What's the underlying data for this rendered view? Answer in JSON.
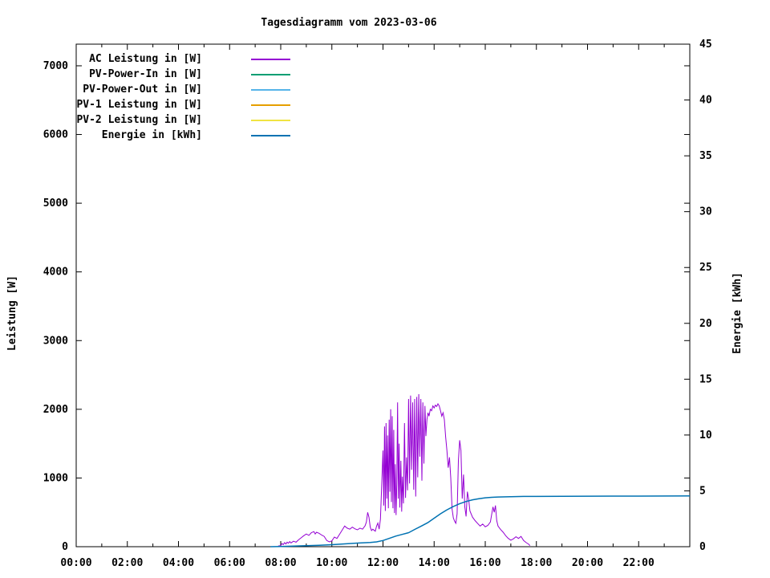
{
  "chart_data": {
    "type": "line",
    "title": "Tagesdiagramm vom 2023-03-06",
    "ylabel": "Leistung [W]",
    "y2label": "Energie [kWh]",
    "grid": false,
    "legend_position": "top-left-inside",
    "x_axis": {
      "unit": "time",
      "range_hours": [
        0,
        24
      ],
      "major_tick_labels": [
        "00:00",
        "02:00",
        "04:00",
        "06:00",
        "08:00",
        "10:00",
        "12:00",
        "14:00",
        "16:00",
        "18:00",
        "20:00",
        "22:00"
      ],
      "minor_tick_every_hours": 1
    },
    "y_axis": {
      "label": "Leistung [W]",
      "tick_min": 0,
      "tick_max": 7000,
      "tick_step": 1000,
      "tick_labels": [
        "0",
        "1000",
        "2000",
        "3000",
        "4000",
        "5000",
        "6000",
        "7000"
      ]
    },
    "y2_axis": {
      "label": "Energie [kWh]",
      "tick_min": 0,
      "tick_max": 45,
      "tick_step": 5,
      "tick_labels": [
        "0",
        "5",
        "10",
        "15",
        "20",
        "25",
        "30",
        "35",
        "40",
        "45"
      ]
    },
    "series": [
      {
        "name": "AC Leistung in [W]",
        "color": "#9400D3",
        "axis": "y1",
        "points": [
          [
            7.9,
            10
          ],
          [
            8.0,
            15
          ],
          [
            8.05,
            45
          ],
          [
            8.1,
            30
          ],
          [
            8.15,
            60
          ],
          [
            8.2,
            40
          ],
          [
            8.25,
            65
          ],
          [
            8.3,
            50
          ],
          [
            8.35,
            75
          ],
          [
            8.4,
            55
          ],
          [
            8.5,
            80
          ],
          [
            8.6,
            65
          ],
          [
            8.7,
            100
          ],
          [
            8.8,
            130
          ],
          [
            8.9,
            160
          ],
          [
            9.0,
            185
          ],
          [
            9.1,
            165
          ],
          [
            9.2,
            205
          ],
          [
            9.3,
            220
          ],
          [
            9.35,
            185
          ],
          [
            9.4,
            210
          ],
          [
            9.5,
            195
          ],
          [
            9.6,
            170
          ],
          [
            9.7,
            150
          ],
          [
            9.8,
            90
          ],
          [
            9.9,
            70
          ],
          [
            10.0,
            85
          ],
          [
            10.1,
            140
          ],
          [
            10.2,
            120
          ],
          [
            10.3,
            180
          ],
          [
            10.4,
            240
          ],
          [
            10.5,
            300
          ],
          [
            10.6,
            270
          ],
          [
            10.7,
            255
          ],
          [
            10.8,
            285
          ],
          [
            10.9,
            260
          ],
          [
            11.0,
            245
          ],
          [
            11.1,
            270
          ],
          [
            11.2,
            255
          ],
          [
            11.3,
            305
          ],
          [
            11.35,
            360
          ],
          [
            11.4,
            500
          ],
          [
            11.45,
            430
          ],
          [
            11.5,
            285
          ],
          [
            11.55,
            235
          ],
          [
            11.6,
            255
          ],
          [
            11.7,
            225
          ],
          [
            11.75,
            300
          ],
          [
            11.8,
            345
          ],
          [
            11.85,
            255
          ],
          [
            11.9,
            400
          ],
          [
            11.95,
            900
          ],
          [
            12.0,
            1400
          ],
          [
            12.03,
            600
          ],
          [
            12.06,
            1750
          ],
          [
            12.09,
            520
          ],
          [
            12.12,
            1800
          ],
          [
            12.15,
            700
          ],
          [
            12.18,
            1620
          ],
          [
            12.21,
            560
          ],
          [
            12.24,
            1850
          ],
          [
            12.27,
            800
          ],
          [
            12.3,
            2000
          ],
          [
            12.33,
            650
          ],
          [
            12.36,
            1900
          ],
          [
            12.39,
            560
          ],
          [
            12.42,
            1700
          ],
          [
            12.45,
            490
          ],
          [
            12.48,
            1200
          ],
          [
            12.51,
            460
          ],
          [
            12.54,
            920
          ],
          [
            12.57,
            2100
          ],
          [
            12.6,
            700
          ],
          [
            12.63,
            1500
          ],
          [
            12.66,
            570
          ],
          [
            12.7,
            1250
          ],
          [
            12.73,
            510
          ],
          [
            12.76,
            1020
          ],
          [
            12.8,
            630
          ],
          [
            12.84,
            1800
          ],
          [
            12.88,
            710
          ],
          [
            12.92,
            1300
          ],
          [
            12.96,
            820
          ],
          [
            13.0,
            2150
          ],
          [
            13.04,
            920
          ],
          [
            13.08,
            2200
          ],
          [
            13.12,
            1120
          ],
          [
            13.16,
            2100
          ],
          [
            13.2,
            830
          ],
          [
            13.24,
            2150
          ],
          [
            13.28,
            730
          ],
          [
            13.32,
            2180
          ],
          [
            13.36,
            1010
          ],
          [
            13.4,
            2220
          ],
          [
            13.44,
            1310
          ],
          [
            13.48,
            2150
          ],
          [
            13.52,
            960
          ],
          [
            13.56,
            2100
          ],
          [
            13.6,
            1210
          ],
          [
            13.64,
            2050
          ],
          [
            13.68,
            1610
          ],
          [
            13.72,
            1850
          ],
          [
            13.76,
            1950
          ],
          [
            13.8,
            1900
          ],
          [
            13.85,
            2000
          ],
          [
            13.9,
            1980
          ],
          [
            13.95,
            2050
          ],
          [
            14.0,
            2020
          ],
          [
            14.05,
            2060
          ],
          [
            14.1,
            2040
          ],
          [
            14.15,
            2080
          ],
          [
            14.2,
            2050
          ],
          [
            14.25,
            1980
          ],
          [
            14.3,
            1900
          ],
          [
            14.35,
            1950
          ],
          [
            14.4,
            1850
          ],
          [
            14.45,
            1600
          ],
          [
            14.5,
            1400
          ],
          [
            14.55,
            1150
          ],
          [
            14.6,
            1300
          ],
          [
            14.65,
            1000
          ],
          [
            14.7,
            550
          ],
          [
            14.75,
            420
          ],
          [
            14.8,
            370
          ],
          [
            14.85,
            340
          ],
          [
            14.9,
            480
          ],
          [
            14.95,
            1250
          ],
          [
            15.0,
            1550
          ],
          [
            15.05,
            1400
          ],
          [
            15.1,
            700
          ],
          [
            15.15,
            1050
          ],
          [
            15.2,
            580
          ],
          [
            15.25,
            440
          ],
          [
            15.3,
            800
          ],
          [
            15.35,
            690
          ],
          [
            15.4,
            520
          ],
          [
            15.5,
            430
          ],
          [
            15.6,
            380
          ],
          [
            15.7,
            340
          ],
          [
            15.8,
            300
          ],
          [
            15.9,
            330
          ],
          [
            16.0,
            290
          ],
          [
            16.1,
            310
          ],
          [
            16.2,
            360
          ],
          [
            16.3,
            580
          ],
          [
            16.35,
            500
          ],
          [
            16.4,
            600
          ],
          [
            16.45,
            380
          ],
          [
            16.5,
            300
          ],
          [
            16.6,
            250
          ],
          [
            16.7,
            210
          ],
          [
            16.8,
            160
          ],
          [
            16.9,
            120
          ],
          [
            17.0,
            95
          ],
          [
            17.1,
            115
          ],
          [
            17.2,
            145
          ],
          [
            17.3,
            120
          ],
          [
            17.4,
            150
          ],
          [
            17.5,
            90
          ],
          [
            17.6,
            60
          ],
          [
            17.7,
            35
          ],
          [
            17.75,
            15
          ]
        ]
      },
      {
        "name": "PV-Power-In in [W]",
        "color": "#009E73",
        "axis": "y1",
        "points": []
      },
      {
        "name": "PV-Power-Out in [W]",
        "color": "#56B4E9",
        "axis": "y1",
        "points": []
      },
      {
        "name": "PV-1 Leistung in [W]",
        "color": "#E69F00",
        "axis": "y1",
        "points": []
      },
      {
        "name": "PV-2 Leistung in [W]",
        "color": "#F0E442",
        "axis": "y1",
        "points": []
      },
      {
        "name": "Energie in [kWh]",
        "color": "#0072B2",
        "axis": "y2",
        "points": [
          [
            7.6,
            0.0
          ],
          [
            8.0,
            0.02
          ],
          [
            8.5,
            0.05
          ],
          [
            9.0,
            0.09
          ],
          [
            9.5,
            0.13
          ],
          [
            10.0,
            0.18
          ],
          [
            10.5,
            0.25
          ],
          [
            11.0,
            0.32
          ],
          [
            11.5,
            0.38
          ],
          [
            11.75,
            0.43
          ],
          [
            12.0,
            0.55
          ],
          [
            12.25,
            0.75
          ],
          [
            12.5,
            0.95
          ],
          [
            12.75,
            1.1
          ],
          [
            13.0,
            1.25
          ],
          [
            13.25,
            1.55
          ],
          [
            13.5,
            1.85
          ],
          [
            13.75,
            2.15
          ],
          [
            14.0,
            2.55
          ],
          [
            14.25,
            2.95
          ],
          [
            14.5,
            3.3
          ],
          [
            14.75,
            3.6
          ],
          [
            15.0,
            3.85
          ],
          [
            15.25,
            4.05
          ],
          [
            15.5,
            4.2
          ],
          [
            15.75,
            4.3
          ],
          [
            16.0,
            4.38
          ],
          [
            16.25,
            4.42
          ],
          [
            16.5,
            4.45
          ],
          [
            17.0,
            4.48
          ],
          [
            17.5,
            4.5
          ],
          [
            18.0,
            4.5
          ],
          [
            19.0,
            4.51
          ],
          [
            20.0,
            4.52
          ],
          [
            22.0,
            4.53
          ],
          [
            24.0,
            4.55
          ]
        ]
      }
    ],
    "frame_color": "#000000",
    "background_color": "#FFFFFF"
  }
}
